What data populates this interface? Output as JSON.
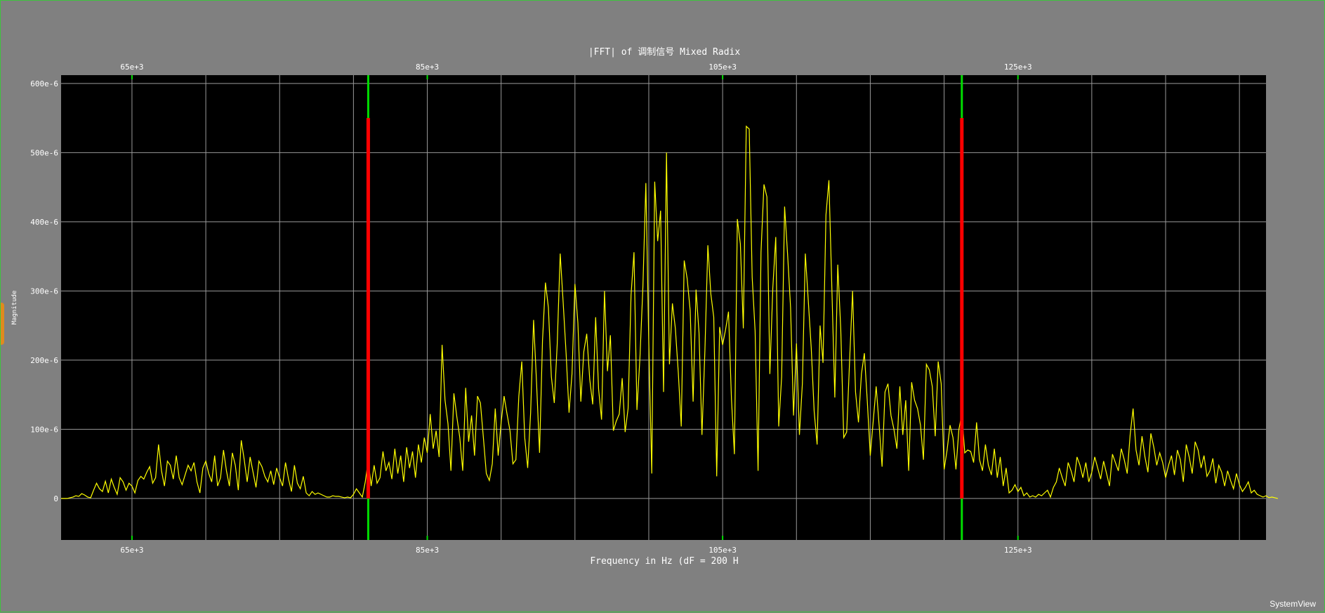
{
  "window": {
    "watermark": "SystemView"
  },
  "colors": {
    "background": "#808080",
    "plot_bg": "#000000",
    "grid": "#9a9a9a",
    "trace": "#ffff00",
    "marker_green": "#00dd00",
    "marker_red": "#ff0000",
    "frame": "#3ec43e"
  },
  "chart_data": {
    "type": "line",
    "title": "|FFT| of 调制信号 Mixed Radix",
    "xlabel": "Frequency in Hz (dF = 200 H",
    "ylabel": "Magnitude",
    "xlim": [
      60200,
      141800
    ],
    "ylim": [
      -6e-05,
      0.000612
    ],
    "x_ticks": [
      65000,
      85000,
      105000,
      125000
    ],
    "x_tick_labels": [
      "65e+3",
      "85e+3",
      "105e+3",
      "125e+3"
    ],
    "y_ticks": [
      0,
      0.0001,
      0.0002,
      0.0003,
      0.0004,
      0.0005,
      0.0006
    ],
    "y_tick_labels": [
      "0",
      "100e-6",
      "200e-6",
      "300e-6",
      "400e-6",
      "500e-6",
      "600e-6"
    ],
    "x_minor_grid_step": 5000,
    "grid": true,
    "markers": [
      {
        "x": 81000,
        "green_from": 0,
        "red_to": 0.00055
      },
      {
        "x": 121200,
        "green_from": 0,
        "red_to": 0.00055
      }
    ],
    "series": [
      {
        "x_start": 60200,
        "x_step": 200,
        "values_e6": [
          0,
          0,
          0,
          1,
          2,
          4,
          3,
          7,
          5,
          2,
          1,
          12,
          22,
          14,
          10,
          25,
          8,
          28,
          16,
          6,
          30,
          24,
          12,
          22,
          18,
          8,
          26,
          32,
          28,
          38,
          46,
          22,
          30,
          78,
          40,
          18,
          54,
          48,
          28,
          62,
          30,
          20,
          34,
          48,
          40,
          52,
          24,
          8,
          44,
          54,
          36,
          24,
          62,
          18,
          30,
          70,
          40,
          18,
          66,
          48,
          12,
          84,
          56,
          24,
          60,
          38,
          16,
          54,
          46,
          32,
          24,
          40,
          20,
          44,
          30,
          18,
          52,
          28,
          10,
          48,
          22,
          14,
          32,
          8,
          4,
          10,
          6,
          8,
          6,
          4,
          2,
          2,
          4,
          3,
          3,
          2,
          1,
          2,
          1,
          6,
          14,
          8,
          2,
          24,
          55,
          18,
          48,
          22,
          30,
          68,
          40,
          52,
          28,
          72,
          36,
          62,
          24,
          74,
          44,
          68,
          30,
          78,
          52,
          88,
          66,
          122,
          72,
          98,
          60,
          222,
          142,
          108,
          40,
          152,
          118,
          88,
          40,
          160,
          82,
          120,
          62,
          148,
          138,
          88,
          36,
          26,
          50,
          130,
          62,
          110,
          148,
          122,
          98,
          50,
          56,
          148,
          198,
          88,
          44,
          124,
          258,
          168,
          66,
          228,
          312,
          276,
          176,
          138,
          224,
          354,
          284,
          210,
          124,
          180,
          310,
          254,
          140,
          212,
          238,
          172,
          136,
          262,
          158,
          114,
          300,
          184,
          236,
          98,
          112,
          122,
          174,
          96,
          130,
          294,
          356,
          128,
          204,
          306,
          456,
          224,
          36,
          458,
          372,
          416,
          154,
          500,
          194,
          282,
          246,
          182,
          104,
          344,
          318,
          272,
          140,
          302,
          240,
          92,
          214,
          366,
          296,
          262,
          32,
          248,
          222,
          244,
          270,
          144,
          64,
          404,
          368,
          246,
          538,
          534,
          320,
          242,
          40,
          356,
          454,
          436,
          180,
          304,
          378,
          104,
          176,
          422,
          354,
          276,
          120,
          224,
          92,
          166,
          354,
          286,
          218,
          126,
          78,
          250,
          196,
          410,
          460,
          304,
          146,
          338,
          244,
          88,
          96,
          200,
          300,
          154,
          110,
          180,
          210,
          140,
          62,
          112,
          162,
          106,
          46,
          154,
          166,
          120,
          100,
          72,
          162,
          92,
          142,
          40,
          168,
          142,
          130,
          106,
          56,
          194,
          186,
          162,
          90,
          198,
          166,
          42,
          70,
          106,
          88,
          42,
          100,
          122,
          66,
          70,
          68,
          52,
          110,
          56,
          40,
          78,
          48,
          34,
          72,
          30,
          60,
          18,
          44,
          8,
          12,
          20,
          10,
          16,
          4,
          8,
          2,
          4,
          2,
          6,
          4,
          8,
          12,
          2,
          16,
          24,
          44,
          30,
          18,
          52,
          40,
          24,
          60,
          48,
          30,
          52,
          24,
          38,
          60,
          44,
          28,
          54,
          36,
          18,
          64,
          52,
          40,
          72,
          56,
          36,
          92,
          130,
          70,
          48,
          90,
          60,
          38,
          94,
          74,
          48,
          66,
          52,
          30,
          48,
          62,
          34,
          70,
          56,
          24,
          78,
          60,
          36,
          82,
          70,
          44,
          62,
          32,
          40,
          58,
          22,
          48,
          38,
          18,
          40,
          26,
          14,
          36,
          20,
          10,
          16,
          24,
          8,
          12,
          6,
          4,
          2,
          4,
          1,
          2,
          1,
          0
        ]
      }
    ]
  }
}
